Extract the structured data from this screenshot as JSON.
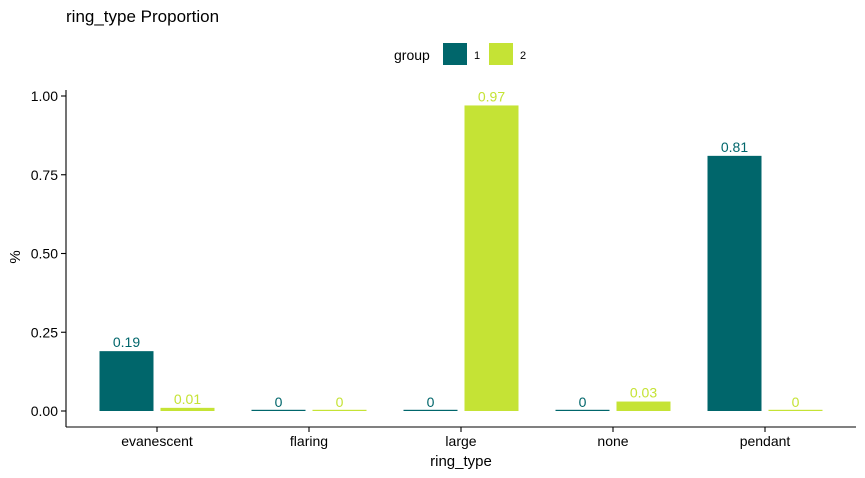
{
  "chart_data": {
    "type": "bar",
    "title": "ring_type Proportion",
    "xlabel": "ring_type",
    "ylabel": "%",
    "categories": [
      "evanescent",
      "flaring",
      "large",
      "none",
      "pendant"
    ],
    "series": [
      {
        "name": "1",
        "color": "#00666b",
        "values": [
          0.19,
          0,
          0,
          0,
          0.81
        ],
        "labels": [
          "0.19",
          "0",
          "0",
          "0",
          "0.81"
        ]
      },
      {
        "name": "2",
        "color": "#c5e335",
        "values": [
          0.01,
          0,
          0.97,
          0.03,
          0
        ],
        "labels": [
          "0.01",
          "0",
          "0.97",
          "0.03",
          "0"
        ]
      }
    ],
    "ylim": [
      0,
      1
    ],
    "yticks": [
      0,
      0.25,
      0.5,
      0.75,
      1
    ],
    "ytick_labels": [
      "0.00",
      "0.25",
      "0.50",
      "0.75",
      "1.00"
    ],
    "legend": {
      "title": "group",
      "position": "top"
    },
    "grid": false
  }
}
